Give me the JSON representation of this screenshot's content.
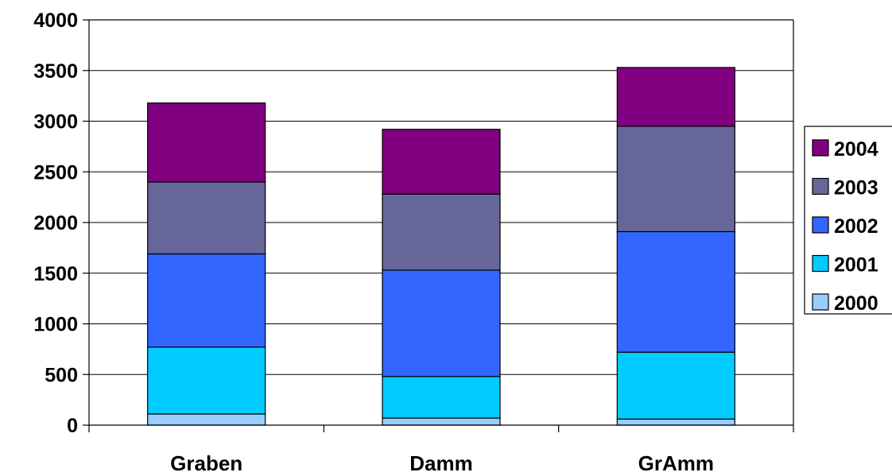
{
  "chart_data": {
    "type": "bar",
    "stacked": true,
    "categories": [
      "Graben",
      "Damm",
      "GrAmm"
    ],
    "series": [
      {
        "name": "2000",
        "color": "#99ccff",
        "values": [
          110,
          70,
          60
        ]
      },
      {
        "name": "2001",
        "color": "#00ccff",
        "values": [
          660,
          410,
          660
        ]
      },
      {
        "name": "2002",
        "color": "#3366ff",
        "values": [
          920,
          1050,
          1190
        ]
      },
      {
        "name": "2003",
        "color": "#666699",
        "values": [
          710,
          750,
          1040
        ]
      },
      {
        "name": "2004",
        "color": "#800080",
        "values": [
          780,
          640,
          580
        ]
      }
    ],
    "title": "",
    "xlabel": "",
    "ylabel": "",
    "ylim": [
      0,
      4000
    ],
    "yticks": [
      "0",
      "500",
      "1000",
      "1500",
      "2000",
      "2500",
      "3000",
      "3500",
      "4000"
    ],
    "grid": true,
    "legend_position": "right"
  }
}
